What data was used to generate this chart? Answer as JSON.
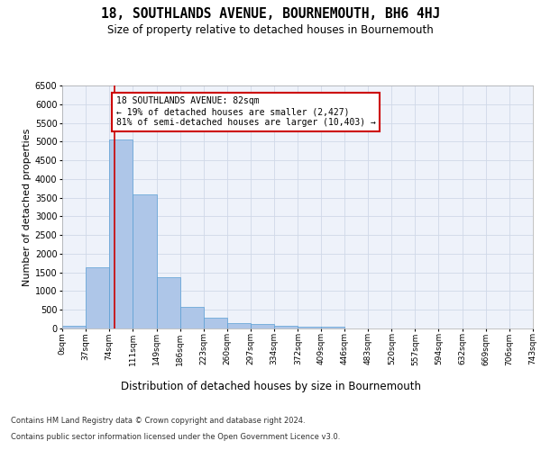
{
  "title": "18, SOUTHLANDS AVENUE, BOURNEMOUTH, BH6 4HJ",
  "subtitle": "Size of property relative to detached houses in Bournemouth",
  "xlabel": "Distribution of detached houses by size in Bournemouth",
  "ylabel": "Number of detached properties",
  "bar_color": "#aec6e8",
  "bar_edge_color": "#5a9fd4",
  "background_color": "#eef2fa",
  "grid_color": "#d0d8e8",
  "annotation_box_color": "#cc0000",
  "annotation_line_color": "#cc0000",
  "property_line_x": 82,
  "annotation_text": "18 SOUTHLANDS AVENUE: 82sqm\n← 19% of detached houses are smaller (2,427)\n81% of semi-detached houses are larger (10,403) →",
  "bin_edges": [
    0,
    37,
    74,
    111,
    149,
    186,
    223,
    260,
    297,
    334,
    372,
    409,
    446,
    483,
    520,
    557,
    594,
    632,
    669,
    706,
    743
  ],
  "bin_labels": [
    "0sqm",
    "37sqm",
    "74sqm",
    "111sqm",
    "149sqm",
    "186sqm",
    "223sqm",
    "260sqm",
    "297sqm",
    "334sqm",
    "372sqm",
    "409sqm",
    "446sqm",
    "483sqm",
    "520sqm",
    "557sqm",
    "594sqm",
    "632sqm",
    "669sqm",
    "706sqm",
    "743sqm"
  ],
  "bar_heights": [
    70,
    1630,
    5060,
    3580,
    1380,
    580,
    290,
    145,
    110,
    75,
    60,
    60,
    0,
    0,
    0,
    0,
    0,
    0,
    0,
    0
  ],
  "ylim": [
    0,
    6500
  ],
  "yticks": [
    0,
    500,
    1000,
    1500,
    2000,
    2500,
    3000,
    3500,
    4000,
    4500,
    5000,
    5500,
    6000,
    6500
  ],
  "footer_line1": "Contains HM Land Registry data © Crown copyright and database right 2024.",
  "footer_line2": "Contains public sector information licensed under the Open Government Licence v3.0."
}
